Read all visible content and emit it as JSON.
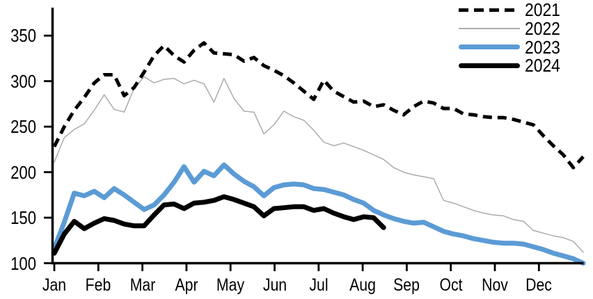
{
  "chart_data": {
    "type": "line",
    "title": "",
    "xlabel": "",
    "ylabel": "",
    "x_axis_labels": [
      "Jan",
      "Feb",
      "Mar",
      "Apr",
      "May",
      "Jun",
      "Jul",
      "Aug",
      "Sep",
      "Oct",
      "Nov",
      "Dec"
    ],
    "y_tick_labels": [
      "350",
      "300",
      "250",
      "200",
      "150",
      "100"
    ],
    "y_tick_values": [
      350,
      300,
      250,
      200,
      150,
      100
    ],
    "ylim": [
      100,
      365
    ],
    "grid": false,
    "legend_position": "top-right",
    "x_unit": "weekly",
    "series": [
      {
        "name": "2021",
        "color": "#000000",
        "style": "dashed",
        "weight": 5,
        "values": [
          228,
          250,
          268,
          282,
          298,
          307,
          307,
          284,
          293,
          310,
          328,
          339,
          328,
          321,
          334,
          342,
          331,
          330,
          329,
          322,
          326,
          317,
          312,
          306,
          298,
          289,
          280,
          301,
          289,
          283,
          277,
          278,
          272,
          274,
          268,
          263,
          272,
          278,
          276,
          270,
          270,
          264,
          263,
          261,
          260,
          260,
          258,
          255,
          252,
          240,
          229,
          219,
          205,
          217
        ]
      },
      {
        "name": "2022",
        "color": "#ababab",
        "style": "solid",
        "weight": 1.5,
        "values": [
          211,
          238,
          247,
          253,
          268,
          285,
          269,
          266,
          292,
          305,
          298,
          302,
          303,
          297,
          301,
          297,
          277,
          303,
          281,
          267,
          266,
          242,
          252,
          267,
          261,
          257,
          246,
          233,
          229,
          232,
          228,
          224,
          219,
          214,
          205,
          200,
          197,
          195,
          193,
          169,
          166,
          162,
          158,
          155,
          153,
          152,
          148,
          146,
          136,
          133,
          130,
          128,
          124,
          112
        ]
      },
      {
        "name": "2023",
        "color": "#5b9bd5",
        "style": "solid",
        "weight": 7,
        "values": [
          116,
          145,
          177,
          174,
          179,
          172,
          182,
          175,
          167,
          159,
          164,
          175,
          189,
          206,
          189,
          201,
          196,
          208,
          198,
          190,
          184,
          174,
          183,
          186,
          187,
          186,
          182,
          181,
          178,
          175,
          170,
          166,
          158,
          153,
          149,
          146,
          144,
          145,
          140,
          135,
          132,
          130,
          127,
          125,
          123,
          122,
          122,
          121,
          118,
          115,
          111,
          108,
          105,
          100
        ]
      },
      {
        "name": "2024",
        "color": "#000000",
        "style": "solid",
        "weight": 7,
        "values": [
          111,
          132,
          146,
          138,
          144,
          149,
          147,
          143,
          141,
          141,
          153,
          164,
          165,
          160,
          166,
          167,
          169,
          173,
          170,
          166,
          162,
          152,
          160,
          161,
          162,
          162,
          158,
          160,
          155,
          151,
          148,
          151,
          150,
          139
        ]
      }
    ]
  }
}
